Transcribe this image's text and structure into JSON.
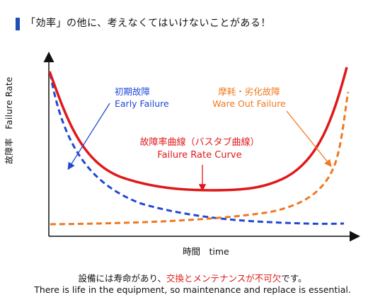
{
  "title": "「効率」の他に、考えなくてはいけないことがある！",
  "y_axis_label": "故障率　Failure Rate",
  "x_axis_label": "時間　time",
  "labels": {
    "early_jp": "初期故障",
    "early_en": "Early Failure",
    "wear_jp": "摩耗・劣化故障",
    "wear_en": "Ware Out Failure",
    "curve_jp": "故障率曲線（バスタブ曲線）",
    "curve_en": "Failure Rate Curve"
  },
  "footer": {
    "line1_pre": "設備には寿命があり、",
    "line1_highlight": "交換とメンテナンスが不可欠",
    "line1_post": "です。",
    "line2": "There is life in the equipment, so maintenance and replace is essential."
  },
  "colors": {
    "early": "#2048d8",
    "wear": "#f07820",
    "bathtub": "#e01818",
    "axis": "#111111",
    "title_bar": "#1f4fb4"
  }
}
